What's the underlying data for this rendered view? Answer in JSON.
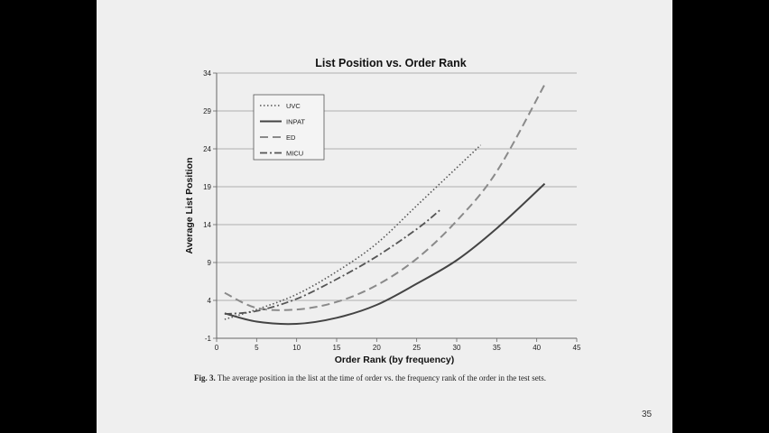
{
  "caption": {
    "label": "Fig. 3.",
    "text": "The average position in the list at the time of order vs. the frequency rank of the order in the test sets."
  },
  "slide_number": "35",
  "chart_data": {
    "type": "line",
    "title": "List Position vs. Order Rank",
    "xlabel": "Order Rank (by frequency)",
    "ylabel": "Average List Position",
    "xlim": [
      0,
      45
    ],
    "ylim": [
      -1,
      34
    ],
    "xticks": [
      0,
      5,
      10,
      15,
      20,
      25,
      30,
      35,
      40,
      45
    ],
    "yticks": [
      -1,
      4,
      9,
      14,
      19,
      24,
      29,
      34
    ],
    "grid": "horizontal",
    "legend_position": "top-left",
    "series": [
      {
        "name": "UVC",
        "style": "dotted",
        "color": "#555555",
        "x": [
          1,
          5,
          10,
          15,
          20,
          25,
          30,
          33
        ],
        "y": [
          1.5,
          2.8,
          4.8,
          7.8,
          11.5,
          16.5,
          21.5,
          24.5
        ]
      },
      {
        "name": "INPAT",
        "style": "solid",
        "color": "#444444",
        "x": [
          1,
          5,
          10,
          15,
          20,
          25,
          30,
          35,
          41
        ],
        "y": [
          2.3,
          1.2,
          0.9,
          1.7,
          3.4,
          6.2,
          9.3,
          13.5,
          19.4
        ]
      },
      {
        "name": "ED",
        "style": "dashed",
        "color": "#8a8a8a",
        "x": [
          1,
          5,
          10,
          15,
          20,
          25,
          30,
          35,
          41
        ],
        "y": [
          5.0,
          3.0,
          2.8,
          3.8,
          6.0,
          9.5,
          14.5,
          21.0,
          32.5
        ]
      },
      {
        "name": "MICU",
        "style": "dashdot",
        "color": "#555555",
        "x": [
          1,
          5,
          10,
          15,
          20,
          25,
          28
        ],
        "y": [
          2.2,
          2.6,
          4.2,
          6.8,
          9.8,
          13.4,
          16.0
        ]
      }
    ]
  }
}
